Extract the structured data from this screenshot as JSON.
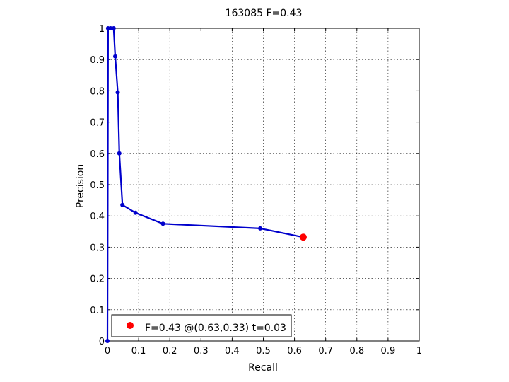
{
  "chart_data": {
    "type": "line",
    "title": "163085 F=0.43",
    "xlabel": "Recall",
    "ylabel": "Precision",
    "xlim": [
      0,
      1
    ],
    "ylim": [
      0,
      1
    ],
    "xticks": [
      0,
      0.1,
      0.2,
      0.3,
      0.4,
      0.5,
      0.6,
      0.7,
      0.8,
      0.9,
      1
    ],
    "yticks": [
      0,
      0.1,
      0.2,
      0.3,
      0.4,
      0.5,
      0.6,
      0.7,
      0.8,
      0.9,
      1
    ],
    "xtick_labels": [
      "0",
      "0.1",
      "0.2",
      "0.3",
      "0.4",
      "0.5",
      "0.6",
      "0.7",
      "0.8",
      "0.9",
      "1"
    ],
    "ytick_labels": [
      "0",
      "0.1",
      "0.2",
      "0.3",
      "0.4",
      "0.5",
      "0.6",
      "0.7",
      "0.8",
      "0.9",
      "1"
    ],
    "grid": true,
    "series": [
      {
        "color": "#0000cc",
        "x": [
          0,
          0.002,
          0.01,
          0.02,
          0.025,
          0.033,
          0.038,
          0.048,
          0.09,
          0.178,
          0.49,
          0.628
        ],
        "y": [
          0,
          1,
          1,
          1,
          0.91,
          0.795,
          0.6,
          0.435,
          0.41,
          0.375,
          0.36,
          0.332
        ]
      }
    ],
    "highlight": {
      "x": 0.628,
      "y": 0.332,
      "color": "#ff0000"
    },
    "legend": {
      "position": "bottom-left",
      "text": "F=0.43 @(0.63,0.33) t=0.03"
    }
  }
}
